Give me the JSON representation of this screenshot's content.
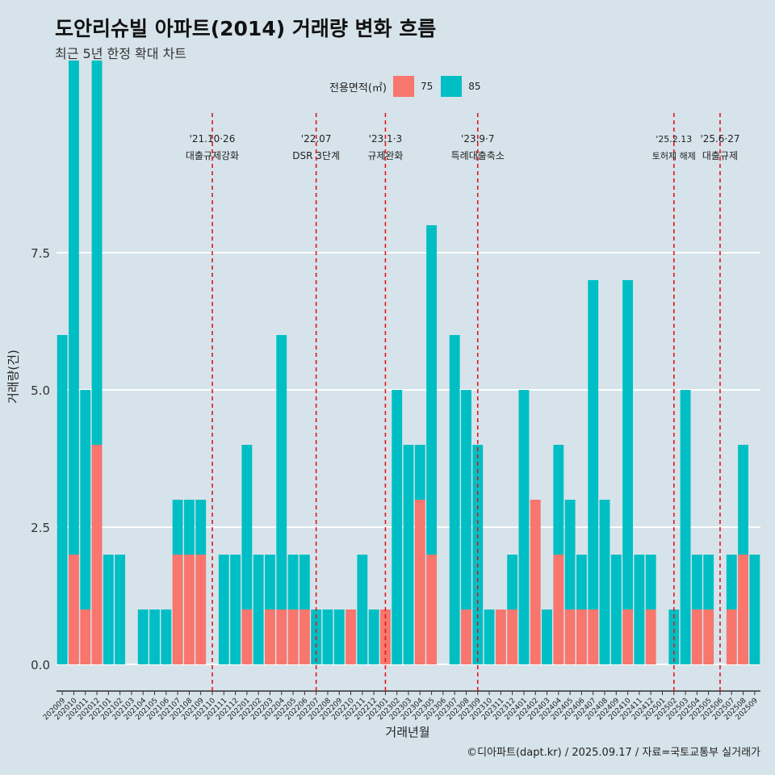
{
  "title": "도안리슈빌 아파트(2014) 거래량 변화 흐름",
  "subtitle": "최근 5년 한정 확대 차트",
  "caption": "©디아파트(dapt.kr) / 2025.09.17 / 자료=국토교통부 실거래가",
  "colors": {
    "background": "#d6e3ea",
    "series_75": "#f8766d",
    "series_85": "#00bfc4",
    "event_line": "#e4151b",
    "grid": "#ffffff"
  },
  "chart_data": {
    "type": "bar",
    "xlabel": "거래년월",
    "ylabel": "거래량(건)",
    "ylim": [
      -0.5,
      9.0
    ],
    "yticks": [
      0.0,
      2.5,
      5.0,
      7.5
    ],
    "ytick_labels": [
      "0.0",
      "2.5",
      "5.0",
      "7.5"
    ],
    "grid": true,
    "legend": {
      "title": "전용면적(㎡)",
      "position": "top"
    },
    "categories": [
      "202009",
      "202010",
      "202011",
      "202012",
      "202101",
      "202102",
      "202103",
      "202104",
      "202105",
      "202106",
      "202107",
      "202108",
      "202109",
      "202110",
      "202111",
      "202112",
      "202201",
      "202202",
      "202203",
      "202204",
      "202205",
      "202206",
      "202207",
      "202208",
      "202209",
      "202210",
      "202211",
      "202212",
      "202301",
      "202302",
      "202303",
      "202304",
      "202305",
      "202306",
      "202307",
      "202308",
      "202309",
      "202310",
      "202311",
      "202312",
      "202401",
      "202402",
      "202403",
      "202404",
      "202405",
      "202406",
      "202407",
      "202408",
      "202409",
      "202410",
      "202411",
      "202412",
      "202501",
      "202502",
      "202503",
      "202504",
      "202505",
      "202506",
      "202507",
      "202508",
      "202509"
    ],
    "series": [
      {
        "name": "75",
        "values": [
          0,
          2,
          1,
          4,
          0,
          0,
          0,
          0,
          0,
          0,
          2,
          2,
          2,
          0,
          0,
          0,
          1,
          0,
          1,
          1,
          1,
          1,
          0,
          0,
          0,
          1,
          0,
          0,
          1,
          0,
          0,
          3,
          2,
          0,
          0,
          1,
          0,
          0,
          1,
          1,
          0,
          3,
          0,
          2,
          1,
          1,
          1,
          0,
          0,
          1,
          0,
          1,
          0,
          0,
          0,
          1,
          1,
          0,
          1,
          2,
          0
        ]
      },
      {
        "name": "85",
        "values": [
          6,
          9,
          4,
          7,
          2,
          2,
          0,
          1,
          1,
          1,
          1,
          1,
          1,
          0,
          2,
          2,
          3,
          2,
          1,
          5,
          1,
          1,
          1,
          1,
          1,
          0,
          2,
          1,
          0,
          5,
          4,
          1,
          6,
          0,
          6,
          4,
          4,
          1,
          0,
          1,
          5,
          0,
          1,
          2,
          2,
          1,
          6,
          3,
          2,
          6,
          2,
          1,
          0,
          1,
          5,
          1,
          1,
          0,
          1,
          2,
          2
        ]
      }
    ],
    "events": [
      {
        "date": "'21.10·26",
        "label": "대출규제강화",
        "category": "202110"
      },
      {
        "date": "'22.07",
        "label": "DSR 3단계",
        "category": "202207"
      },
      {
        "date": "'23.1·3",
        "label": "규제완화",
        "category": "202301"
      },
      {
        "date": "'23.9·7",
        "label": "특례대출축소",
        "category": "202309"
      },
      {
        "date": "'25.2.13",
        "label": "토허제 해제",
        "category": "202502"
      },
      {
        "date": "'25.6·27",
        "label": "대출규제",
        "category": "202506"
      }
    ]
  }
}
